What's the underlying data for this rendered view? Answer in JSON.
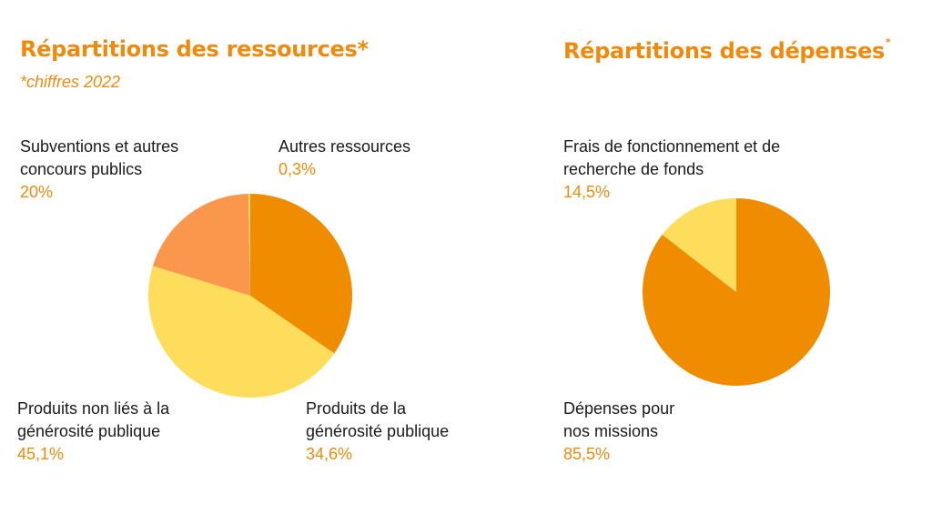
{
  "colors": {
    "accent": "#ef8a0c",
    "dark_orange": "#f08c00",
    "light_orange": "#fb964d",
    "yellow": "#fedd5d",
    "text": "#1a1a1a"
  },
  "resources": {
    "title": "Répartitions des ressources*",
    "subtitle": "*chiffres 2022"
  },
  "expenses": {
    "title": "Répartitions des dépenses",
    "title_mark": "*"
  },
  "chart_data": [
    {
      "type": "pie",
      "title": "Répartitions des ressources*",
      "subtitle": "*chiffres 2022",
      "slices": [
        {
          "label_lines": [
            "Produits de la",
            "générosité publique"
          ],
          "value": 34.6,
          "value_text": "34,6%",
          "color": "#f08c00"
        },
        {
          "label_lines": [
            "Produits non liés à la",
            "générosité publique"
          ],
          "value": 45.1,
          "value_text": "45,1%",
          "color": "#fedd5d"
        },
        {
          "label_lines": [
            "Subventions et autres",
            "concours publics"
          ],
          "value": 20,
          "value_text": "20%",
          "color": "#fb964d"
        },
        {
          "label_lines": [
            "Autres ressources"
          ],
          "value": 0.3,
          "value_text": "0,3%",
          "color": "#fedd5d"
        }
      ]
    },
    {
      "type": "pie",
      "title": "Répartitions des dépenses*",
      "slices": [
        {
          "label_lines": [
            "Dépenses pour",
            "nos missions"
          ],
          "value": 85.5,
          "value_text": "85,5%",
          "color": "#f08c00"
        },
        {
          "label_lines": [
            "Frais de fonctionnement et de",
            "recherche de fonds"
          ],
          "value": 14.5,
          "value_text": "14,5%",
          "color": "#fedd5d"
        }
      ]
    }
  ]
}
